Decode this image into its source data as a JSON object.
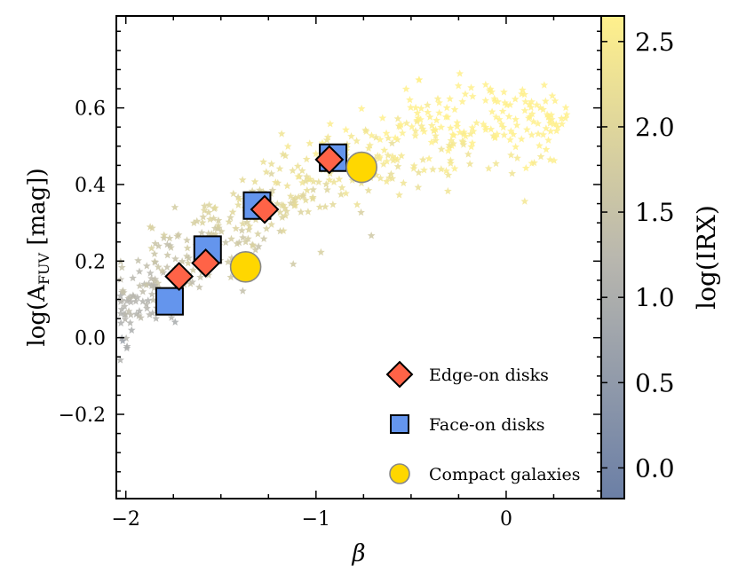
{
  "chart_data": {
    "type": "scatter",
    "xlabel": "β",
    "ylabel_main": "log(A",
    "ylabel_sub": "FUV",
    "ylabel_unit": " [mag])",
    "xlim": [
      -2.05,
      0.5
    ],
    "ylim": [
      -0.42,
      0.84
    ],
    "xticks": [
      -2,
      -1,
      0
    ],
    "xtick_labels": [
      "−2",
      "−1",
      "0"
    ],
    "yticks": [
      -0.2,
      0.0,
      0.2,
      0.4,
      0.6
    ],
    "ytick_labels": [
      "−0.2",
      "0.0",
      "0.2",
      "0.4",
      "0.6"
    ],
    "colorbar": {
      "label": "log(IRX)",
      "range": [
        -0.18,
        2.65
      ],
      "ticks": [
        0.0,
        0.5,
        1.0,
        1.5,
        2.0,
        2.5
      ],
      "tick_labels": [
        "0.0",
        "0.5",
        "1.0",
        "1.5",
        "2.0",
        "2.5"
      ],
      "color_low": "#6b7fa6",
      "color_mid": "#b9b7ae",
      "color_high": "#fff08c"
    },
    "background_points_note": "",
    "series": [
      {
        "name": "Edge-on disks",
        "marker": "diamond",
        "color": "#ff6347",
        "x": [
          -1.72,
          -1.58,
          -1.27,
          -0.93
        ],
        "y": [
          0.16,
          0.195,
          0.335,
          0.465
        ]
      },
      {
        "name": "Face-on disks",
        "marker": "square",
        "color": "#6495ed",
        "x": [
          -1.77,
          -1.57,
          -1.31,
          -0.91
        ],
        "y": [
          0.095,
          0.23,
          0.345,
          0.47
        ]
      },
      {
        "name": "Compact galaxies",
        "marker": "circle",
        "color": "#ffd700",
        "x": [
          -1.37,
          -0.76
        ],
        "y": [
          0.185,
          0.445
        ]
      }
    ],
    "legend": {
      "position": "lower-right"
    }
  }
}
